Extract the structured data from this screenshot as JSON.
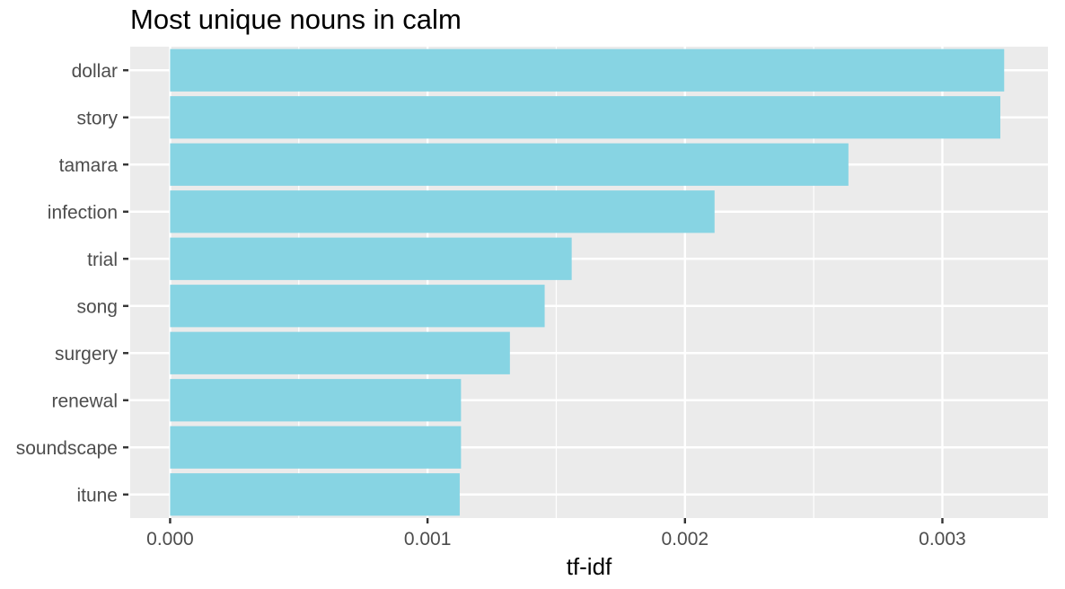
{
  "chart_data": {
    "type": "bar",
    "orientation": "horizontal",
    "title": "Most unique nouns in calm",
    "xlabel": "tf-idf",
    "ylabel": "",
    "categories": [
      "dollar",
      "story",
      "tamara",
      "infection",
      "trial",
      "song",
      "surgery",
      "renewal",
      "soundscape",
      "itune"
    ],
    "values": [
      0.00324,
      0.003225,
      0.002635,
      0.002115,
      0.00156,
      0.001455,
      0.00132,
      0.00113,
      0.00113,
      0.001125
    ],
    "xlim": [
      -0.000155,
      0.00341
    ],
    "xticks": [
      0,
      0.001,
      0.002,
      0.003
    ],
    "xtick_labels": [
      "0.000",
      "0.001",
      "0.002",
      "0.003"
    ],
    "bar_color": "#87d4e3",
    "panel_background": "#ebebeb",
    "grid": true,
    "legend": "none"
  }
}
